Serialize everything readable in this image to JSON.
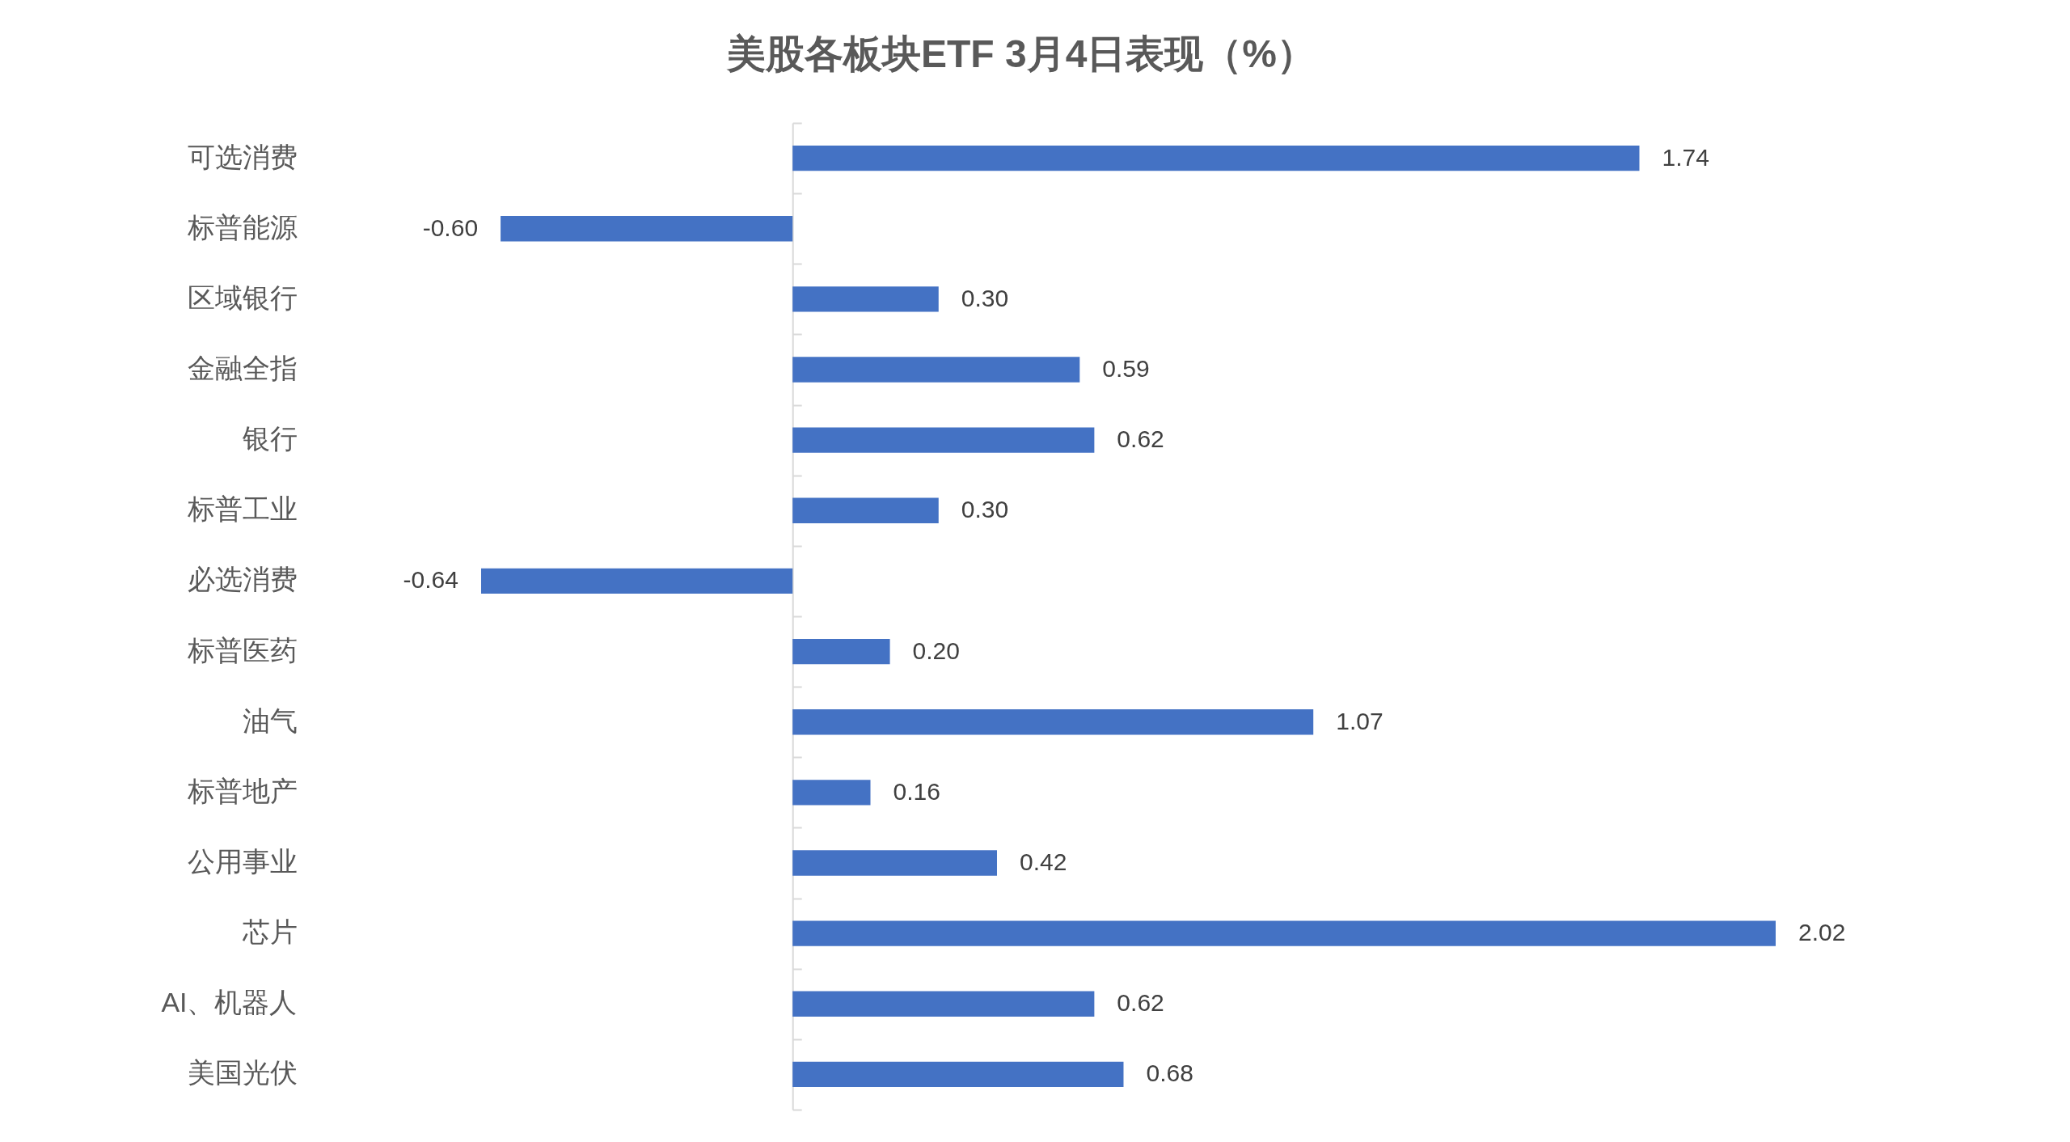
{
  "chart_data": {
    "type": "bar",
    "orientation": "horizontal",
    "title": "美股各板块ETF 3月4日表现（%）",
    "categories": [
      "可选消费",
      "标普能源",
      "区域银行",
      "金融全指",
      "银行",
      "标普工业",
      "必选消费",
      "标普医药",
      "油气",
      "标普地产",
      "公用事业",
      "芯片",
      "AI、机器人",
      "美国光伏"
    ],
    "values": [
      1.74,
      -0.6,
      0.3,
      0.59,
      0.62,
      0.3,
      -0.64,
      0.2,
      1.07,
      0.16,
      0.42,
      2.02,
      0.62,
      0.68
    ],
    "value_labels": [
      "1.74",
      "-0.60",
      "0.30",
      "0.59",
      "0.62",
      "0.30",
      "-0.64",
      "0.20",
      "1.07",
      "0.16",
      "0.42",
      "2.02",
      "0.62",
      "0.68"
    ],
    "color": "#4472c4",
    "tick_labels": "y"
  }
}
